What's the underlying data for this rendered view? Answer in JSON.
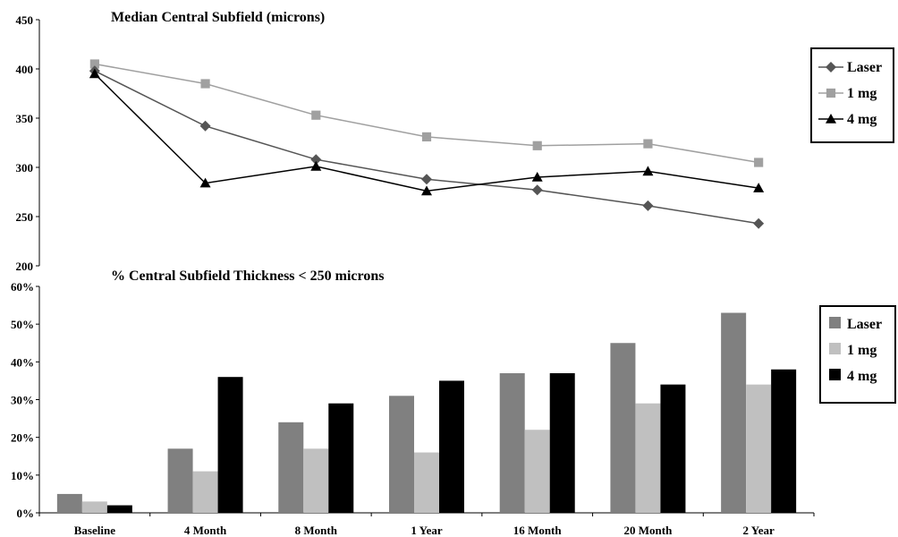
{
  "chart_data": [
    {
      "type": "line",
      "title": "Median Central Subfield (microns)",
      "categories": [
        "Baseline",
        "4 Month",
        "8 Month",
        "1 Year",
        "16 Month",
        "20 Month",
        "2 Year"
      ],
      "ylim": [
        200,
        450
      ],
      "yticks": [
        "200",
        "250",
        "300",
        "350",
        "400",
        "450"
      ],
      "legend_position": "right",
      "series": [
        {
          "name": "Laser",
          "marker": "diamond",
          "color": "#555555",
          "values": [
            398,
            342,
            308,
            288,
            277,
            261,
            243
          ]
        },
        {
          "name": "1 mg",
          "marker": "square",
          "color": "#a0a0a0",
          "values": [
            405,
            385,
            353,
            331,
            322,
            324,
            305
          ]
        },
        {
          "name": "4 mg",
          "marker": "triangle",
          "color": "#000000",
          "values": [
            395,
            284,
            301,
            276,
            290,
            296,
            279
          ]
        }
      ]
    },
    {
      "type": "bar",
      "title": "% Central Subfield Thickness < 250 microns",
      "categories": [
        "Baseline",
        "4 Month",
        "8 Month",
        "1 Year",
        "16 Month",
        "20 Month",
        "2 Year"
      ],
      "ylim": [
        0,
        60
      ],
      "yticks": [
        "0%",
        "10%",
        "20%",
        "30%",
        "40%",
        "50%",
        "60%"
      ],
      "legend_position": "right",
      "series": [
        {
          "name": "Laser",
          "color": "#808080",
          "values": [
            5,
            17,
            24,
            31,
            37,
            45,
            53
          ]
        },
        {
          "name": "1 mg",
          "color": "#c0c0c0",
          "values": [
            3,
            11,
            17,
            16,
            22,
            29,
            34
          ]
        },
        {
          "name": "4 mg",
          "color": "#000000",
          "values": [
            2,
            36,
            29,
            35,
            37,
            34,
            38
          ]
        }
      ]
    }
  ]
}
